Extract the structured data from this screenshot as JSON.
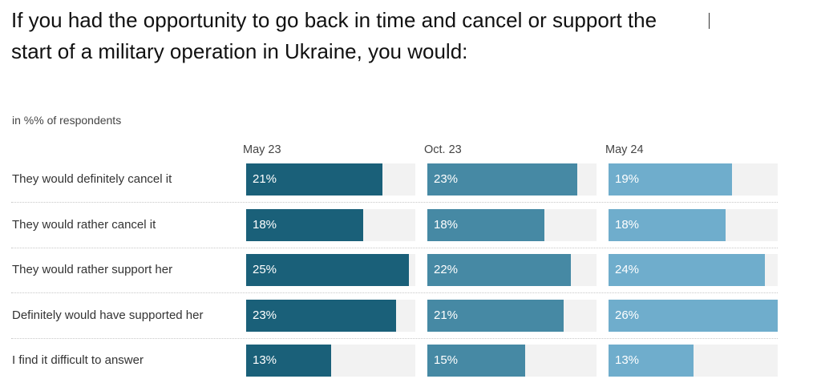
{
  "chart_data": {
    "type": "bar",
    "title": "If you had the opportunity to go back in time and cancel or support the start of a military operation in Ukraine, you would:",
    "subtitle": "in %% of respondents",
    "categories": [
      "They would definitely cancel it",
      "They would rather cancel it",
      "They would rather support her",
      "Definitely would have supported her",
      "I find it difficult to answer"
    ],
    "series": [
      {
        "name": "May 23",
        "values": [
          21,
          18,
          25,
          23,
          13
        ],
        "color": "#1a6079"
      },
      {
        "name": "Oct. 23",
        "values": [
          23,
          18,
          22,
          21,
          15
        ],
        "color": "#4689a4"
      },
      {
        "name": "May 24",
        "values": [
          19,
          18,
          24,
          26,
          13
        ],
        "color": "#6fadcc"
      }
    ],
    "xlim": [
      0,
      26
    ],
    "value_suffix": "%",
    "track_color": "#f2f2f2"
  }
}
